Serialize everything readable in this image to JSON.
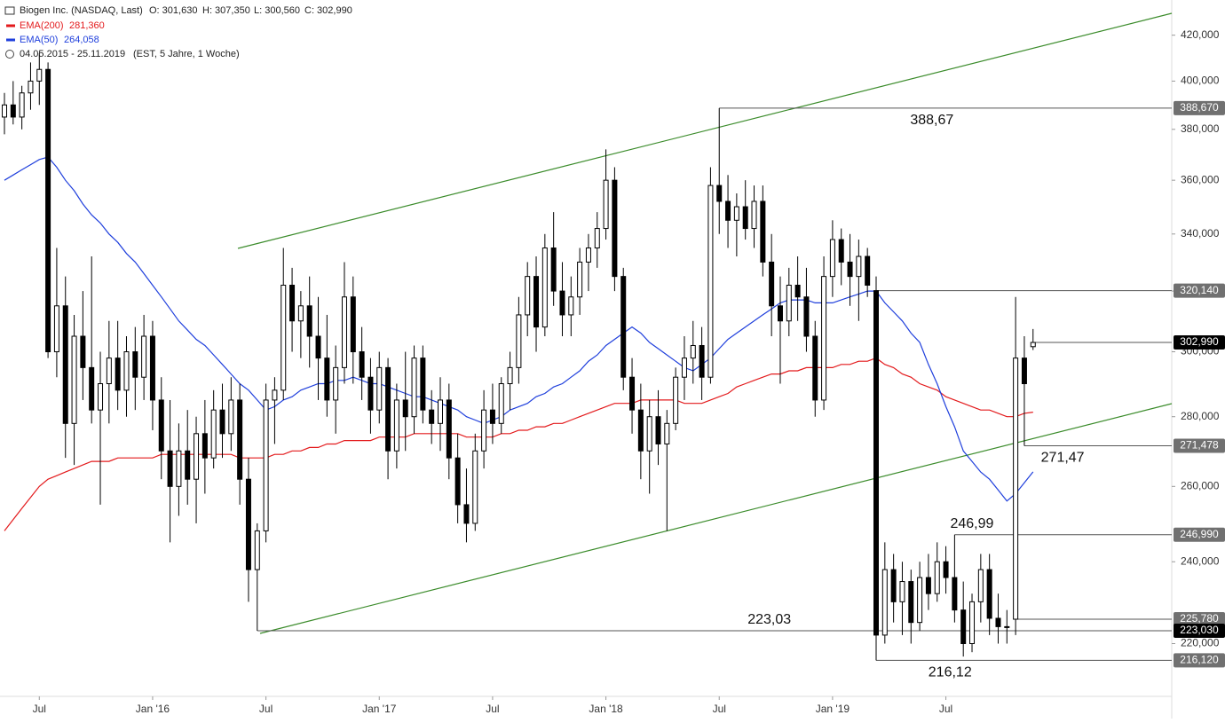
{
  "chart_data": {
    "type": "candlestick",
    "title": "Biogen Inc. (NASDAQ, Last)",
    "ohlc_labels": [
      "O: 301,630",
      "H: 307,350",
      "L: 300,560",
      "C: 302,990"
    ],
    "period": "04.05.2015 - 25.11.2019",
    "period_note": "(EST, 5 Jahre, 1 Woche)",
    "log_y": true,
    "ylim": [
      208,
      436
    ],
    "yticks": [
      {
        "value": 220,
        "label": "220,000"
      },
      {
        "value": 240,
        "label": "240,000"
      },
      {
        "value": 260,
        "label": "260,000"
      },
      {
        "value": 280,
        "label": "280,000"
      },
      {
        "value": 300,
        "label": "300,000"
      },
      {
        "value": 320,
        "label": "320,000"
      },
      {
        "value": 340,
        "label": "340,000"
      },
      {
        "value": 360,
        "label": "360,000"
      },
      {
        "value": 380,
        "label": "380,000"
      },
      {
        "value": 400,
        "label": "400,000"
      },
      {
        "value": 420,
        "label": "420,000"
      }
    ],
    "categories": [
      null,
      null,
      null,
      null,
      "Jul",
      null,
      null,
      null,
      null,
      null,
      null,
      null,
      null,
      null,
      null,
      null,
      null,
      "Jan '16",
      null,
      null,
      null,
      null,
      null,
      null,
      null,
      null,
      null,
      null,
      null,
      null,
      "Jul",
      null,
      null,
      null,
      null,
      null,
      null,
      null,
      null,
      null,
      null,
      null,
      null,
      "Jan '17",
      null,
      null,
      null,
      null,
      null,
      null,
      null,
      null,
      null,
      null,
      null,
      null,
      "Jul",
      null,
      null,
      null,
      null,
      null,
      null,
      null,
      null,
      null,
      null,
      null,
      null,
      "Jan '18",
      null,
      null,
      null,
      null,
      null,
      null,
      null,
      null,
      null,
      null,
      null,
      null,
      "Jul",
      null,
      null,
      null,
      null,
      null,
      null,
      null,
      null,
      null,
      null,
      null,
      null,
      "Jan '19",
      null,
      null,
      null,
      null,
      null,
      null,
      null,
      null,
      null,
      null,
      null,
      null,
      "Jul",
      null,
      null,
      null,
      null,
      null,
      null,
      null,
      null,
      null,
      null
    ],
    "open": [
      385,
      390,
      385,
      395,
      400,
      405,
      300,
      315,
      278,
      305,
      295,
      282,
      290,
      298,
      288,
      300,
      292,
      305,
      285,
      270,
      260,
      270,
      262,
      275,
      268,
      282,
      275,
      285,
      262,
      238,
      248,
      285,
      288,
      322,
      310,
      315,
      305,
      298,
      285,
      295,
      318,
      300,
      292,
      282,
      295,
      270,
      285,
      280,
      298,
      282,
      278,
      285,
      268,
      255,
      250,
      270,
      282,
      278,
      290,
      295,
      312,
      325,
      308,
      335,
      320,
      312,
      318,
      330,
      335,
      342,
      360,
      325,
      292,
      282,
      270,
      280,
      272,
      278,
      292,
      298,
      302,
      292,
      358,
      352,
      345,
      350,
      342,
      352,
      330,
      315,
      310,
      322,
      318,
      305,
      285,
      325,
      338,
      330,
      325,
      332,
      320.14,
      222,
      238,
      230,
      235,
      225,
      236,
      232,
      240,
      236,
      228,
      220,
      230,
      238,
      226,
      224,
      225.78,
      298,
      301.63
    ],
    "high": [
      395,
      400,
      398,
      408,
      412,
      408,
      335,
      325,
      312,
      320,
      332,
      300,
      310,
      310,
      305,
      308,
      312,
      310,
      292,
      285,
      278,
      282,
      280,
      285,
      288,
      290,
      292,
      290,
      268,
      250,
      290,
      292,
      335,
      328,
      320,
      325,
      318,
      312,
      302,
      330,
      325,
      308,
      298,
      300,
      298,
      290,
      300,
      302,
      302,
      288,
      292,
      290,
      275,
      265,
      275,
      288,
      290,
      292,
      300,
      318,
      330,
      332,
      340,
      348,
      330,
      325,
      335,
      340,
      348,
      372,
      365,
      328,
      298,
      290,
      285,
      288,
      282,
      295,
      305,
      310,
      308,
      365,
      388.67,
      362,
      355,
      360,
      358,
      358,
      340,
      325,
      328,
      332,
      328,
      310,
      332,
      345,
      342,
      340,
      338,
      335,
      325,
      245,
      242,
      240,
      238,
      240,
      242,
      245,
      244,
      246.99,
      235,
      232,
      242,
      242,
      232,
      228,
      318,
      305,
      307.35
    ],
    "low": [
      378,
      382,
      380,
      388,
      390,
      298,
      292,
      268,
      266,
      285,
      278,
      255,
      278,
      282,
      280,
      282,
      285,
      276,
      262,
      245,
      252,
      255,
      250,
      258,
      265,
      268,
      270,
      255,
      230,
      223.03,
      245,
      272,
      285,
      300,
      298,
      295,
      285,
      280,
      275,
      290,
      290,
      285,
      275,
      278,
      262,
      265,
      270,
      275,
      278,
      272,
      270,
      262,
      250,
      245,
      248,
      265,
      272,
      275,
      282,
      290,
      305,
      300,
      305,
      315,
      305,
      305,
      312,
      320,
      328,
      338,
      320,
      288,
      275,
      262,
      258,
      266,
      248,
      276,
      285,
      290,
      285,
      290,
      340,
      335,
      332,
      338,
      335,
      325,
      305,
      290,
      305,
      310,
      300,
      280,
      282,
      318,
      322,
      315,
      310,
      318,
      216.12,
      220,
      225,
      222,
      220,
      223,
      228,
      230,
      232,
      225,
      217,
      218,
      225,
      222,
      220,
      220,
      222,
      271.478,
      300.56
    ],
    "close": [
      390,
      385,
      395,
      400,
      405,
      300,
      315,
      278,
      305,
      295,
      282,
      290,
      298,
      288,
      300,
      292,
      305,
      285,
      270,
      260,
      270,
      262,
      275,
      268,
      282,
      275,
      285,
      262,
      238,
      248,
      285,
      288,
      322,
      310,
      315,
      305,
      298,
      285,
      295,
      318,
      300,
      292,
      282,
      295,
      270,
      285,
      280,
      298,
      282,
      278,
      285,
      268,
      255,
      250,
      270,
      282,
      278,
      290,
      295,
      312,
      325,
      308,
      335,
      320,
      312,
      318,
      330,
      335,
      342,
      360,
      325,
      292,
      282,
      270,
      280,
      272,
      278,
      292,
      298,
      302,
      292,
      358,
      352,
      345,
      350,
      342,
      352,
      330,
      315,
      310,
      322,
      318,
      305,
      285,
      325,
      338,
      330,
      325,
      332,
      322,
      222,
      238,
      230,
      235,
      225,
      236,
      232,
      240,
      236,
      228,
      220,
      230,
      238,
      226,
      224,
      224,
      298,
      290,
      302.99
    ],
    "series": [
      {
        "name": "EMA(200)",
        "color": "#e31a1c",
        "value_label": "281,360",
        "values": [
          248,
          251,
          254,
          257,
          260,
          262,
          263,
          264,
          265,
          266,
          267,
          267,
          267,
          268,
          268,
          268,
          268,
          268,
          269,
          269,
          269,
          269,
          269,
          269,
          269,
          269,
          269,
          268,
          268,
          268,
          268,
          269,
          269,
          270,
          270,
          271,
          271,
          272,
          272,
          273,
          273,
          273,
          273,
          274,
          274,
          274,
          274,
          275,
          275,
          275,
          275,
          275,
          275,
          274,
          274,
          274,
          274,
          275,
          275,
          276,
          276,
          277,
          277,
          278,
          278,
          279,
          280,
          281,
          282,
          283,
          284,
          284,
          284,
          285,
          285,
          285,
          285,
          285,
          284,
          284,
          284,
          285,
          286,
          287,
          289,
          290,
          291,
          292,
          293,
          293,
          294,
          294,
          295,
          295,
          295,
          295,
          296,
          296,
          297,
          297,
          298,
          296,
          295,
          293,
          292,
          290,
          289,
          288,
          286,
          285,
          284,
          283,
          282,
          282,
          281,
          280,
          280,
          281,
          281.36
        ]
      },
      {
        "name": "EMA(50)",
        "color": "#1f3fdc",
        "value_label": "264,058",
        "values": [
          360,
          362,
          364,
          366,
          368,
          369,
          365,
          360,
          356,
          351,
          347,
          344,
          340,
          337,
          333,
          330,
          326,
          322,
          318,
          314,
          310,
          307,
          304,
          302,
          299,
          296,
          293,
          290,
          288,
          285,
          282,
          283,
          285,
          286,
          288,
          289,
          290,
          290,
          291,
          291,
          292,
          291,
          290,
          290,
          289,
          288,
          287,
          286,
          286,
          285,
          284,
          283,
          282,
          280,
          279,
          278,
          279,
          280,
          282,
          283,
          284,
          286,
          287,
          289,
          290,
          292,
          294,
          297,
          299,
          302,
          304,
          306,
          308,
          306,
          303,
          301,
          299,
          297,
          295,
          294,
          296,
          298,
          301,
          304,
          306,
          308,
          310,
          312,
          314,
          316,
          317,
          317,
          317,
          316,
          316,
          316,
          317,
          318,
          319,
          320,
          320,
          316,
          313,
          310,
          306,
          303,
          296,
          290,
          283,
          277,
          270,
          267,
          264,
          262,
          259,
          256,
          258,
          261,
          264.058
        ]
      }
    ],
    "levels": [
      {
        "value": 388.67,
        "label": "388,670",
        "note": "388,67",
        "color": "#707070"
      },
      {
        "value": 320.14,
        "label": "320,140",
        "color": "#707070"
      },
      {
        "value": 302.99,
        "label": "302,990",
        "color": "#000000"
      },
      {
        "value": 271.478,
        "label": "271,478",
        "note": "271,47",
        "color": "#707070"
      },
      {
        "value": 246.99,
        "label": "246,990",
        "note": "246,99",
        "color": "#707070"
      },
      {
        "value": 225.78,
        "label": "225,780",
        "color": "#707070"
      },
      {
        "value": 223.03,
        "label": "223,030",
        "note": "223,03",
        "color": "#000000"
      },
      {
        "value": 216.12,
        "label": "216,120",
        "note": "216,12",
        "color": "#707070"
      }
    ]
  }
}
